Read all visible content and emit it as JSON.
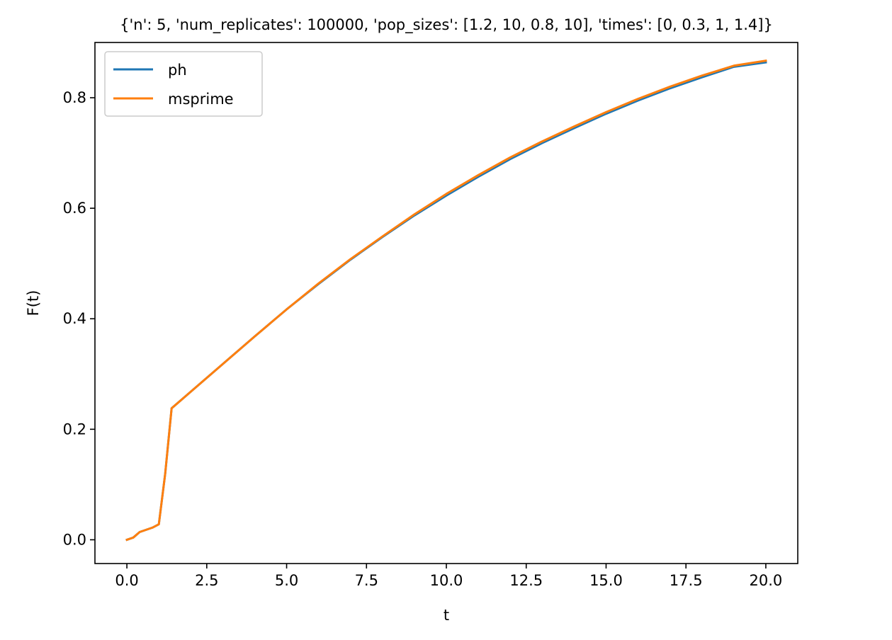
{
  "chart_data": {
    "type": "line",
    "title": "{'n': 5, 'num_replicates': 100000, 'pop_sizes': [1.2, 10, 0.8, 10], 'times': [0, 0.3, 1, 1.4]}",
    "xlabel": "t",
    "ylabel": "F(t)",
    "xlim": [
      -1.0,
      21.0
    ],
    "ylim": [
      -0.043,
      0.9
    ],
    "xticks": [
      0.0,
      2.5,
      5.0,
      7.5,
      10.0,
      12.5,
      15.0,
      17.5,
      20.0
    ],
    "xtick_labels": [
      "0.0",
      "2.5",
      "5.0",
      "7.5",
      "10.0",
      "12.5",
      "15.0",
      "17.5",
      "20.0"
    ],
    "yticks": [
      0.0,
      0.2,
      0.4,
      0.6,
      0.8
    ],
    "ytick_labels": [
      "0.0",
      "0.2",
      "0.4",
      "0.6",
      "0.8"
    ],
    "grid": false,
    "legend": "top-left",
    "series": [
      {
        "name": "ph",
        "color": "#1f77b4",
        "x": [
          0,
          0.2,
          0.4,
          0.6,
          0.8,
          1.0,
          1.2,
          1.4,
          2.0,
          2.5,
          3.0,
          4.0,
          5.0,
          6.0,
          7.0,
          8.0,
          9.0,
          10.0,
          11.0,
          12.0,
          13.0,
          14.0,
          15.0,
          16.0,
          17.0,
          18.0,
          19.0,
          20.0
        ],
        "values": [
          0.0,
          0.004,
          0.014,
          0.018,
          0.022,
          0.028,
          0.12,
          0.238,
          0.268,
          0.293,
          0.318,
          0.368,
          0.417,
          0.463,
          0.507,
          0.548,
          0.587,
          0.623,
          0.657,
          0.689,
          0.718,
          0.745,
          0.771,
          0.795,
          0.817,
          0.837,
          0.856,
          0.864
        ]
      },
      {
        "name": "msprime",
        "color": "#ff7f0e",
        "x": [
          0,
          0.2,
          0.4,
          0.6,
          0.8,
          1.0,
          1.2,
          1.4,
          2.0,
          2.5,
          3.0,
          4.0,
          5.0,
          6.0,
          7.0,
          8.0,
          9.0,
          10.0,
          11.0,
          12.0,
          13.0,
          14.0,
          15.0,
          16.0,
          17.0,
          18.0,
          19.0,
          20.0
        ],
        "values": [
          0.0,
          0.004,
          0.014,
          0.018,
          0.022,
          0.028,
          0.12,
          0.238,
          0.268,
          0.293,
          0.318,
          0.368,
          0.417,
          0.464,
          0.508,
          0.549,
          0.589,
          0.626,
          0.66,
          0.692,
          0.721,
          0.748,
          0.774,
          0.798,
          0.82,
          0.84,
          0.858,
          0.867
        ]
      }
    ]
  }
}
